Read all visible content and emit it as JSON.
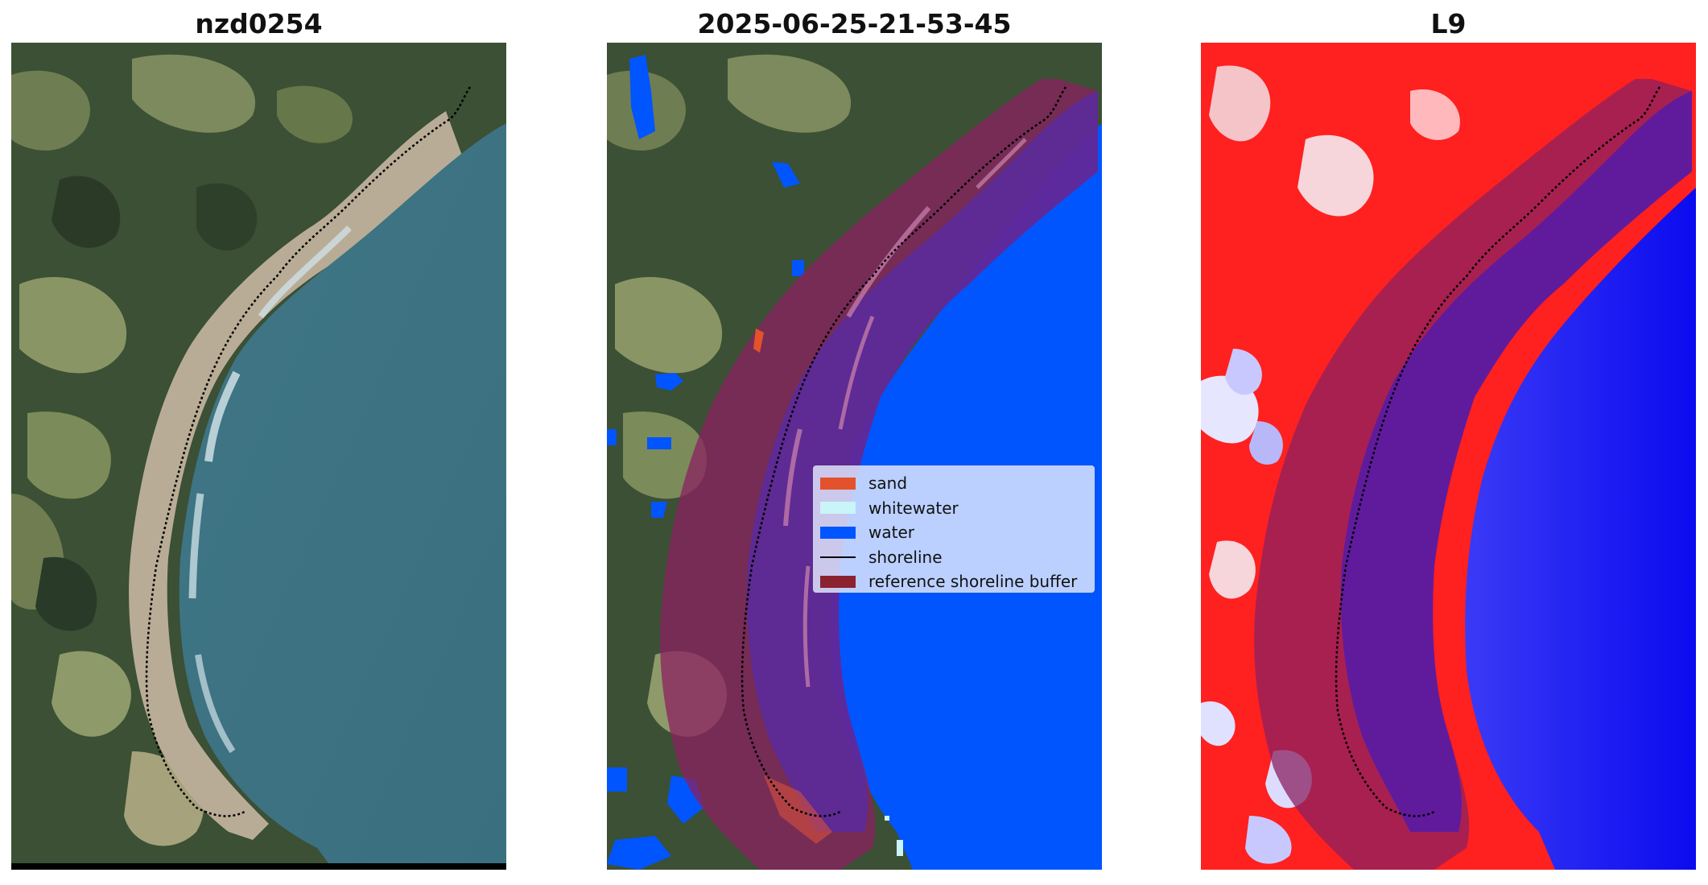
{
  "panels": [
    {
      "title": "nzd0254"
    },
    {
      "title": "2025-06-25-21-53-45"
    },
    {
      "title": "L9"
    }
  ],
  "legend": {
    "items": [
      {
        "label": "sand",
        "color": "#e3522c",
        "kind": "patch"
      },
      {
        "label": "whitewater",
        "color": "#c9f4f8",
        "kind": "patch"
      },
      {
        "label": "water",
        "color": "#0055ff",
        "kind": "patch"
      },
      {
        "label": "shoreline",
        "color": "#000000",
        "kind": "line"
      },
      {
        "label": "reference shoreline buffer",
        "color": "#8b2230",
        "kind": "patch"
      }
    ]
  }
}
